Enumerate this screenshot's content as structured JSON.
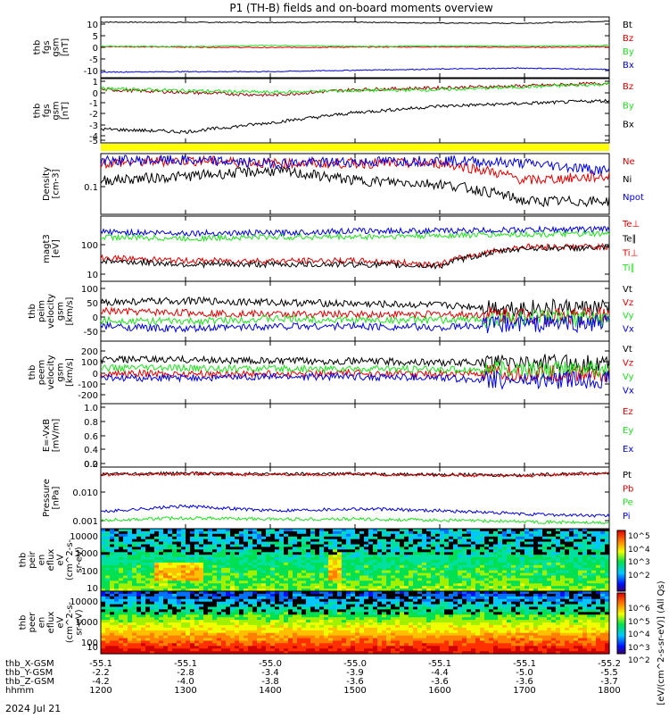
{
  "title": "P1 (TH-B) fields and on-board moments overview",
  "date_label": "2024 Jul 21",
  "colors": {
    "black": "#000000",
    "red": "#e00000",
    "green": "#20e020",
    "blue": "#0000e0",
    "yellow": "#ffff00"
  },
  "panels": [
    {
      "id": "fgs",
      "ylabel": [
        "thb",
        "fgs",
        "gsm",
        "[nT]"
      ],
      "ticks": [
        "10",
        "5",
        "0",
        "-5",
        "-10"
      ],
      "legend": [
        {
          "text": "Bt",
          "color": "black"
        },
        {
          "text": "Bz",
          "color": "red"
        },
        {
          "text": "By",
          "color": "green"
        },
        {
          "text": "Bx",
          "color": "blue"
        }
      ]
    },
    {
      "id": "fgs_zoom",
      "ylabel": [
        "thb",
        "fgs",
        "gsm",
        "[nT]"
      ],
      "ticks": [
        "1",
        "0",
        "-1",
        "-2",
        "-3",
        "-4",
        "-5"
      ],
      "legend": [
        {
          "text": "Bz",
          "color": "red"
        },
        {
          "text": "By",
          "color": "green"
        },
        {
          "text": "Bx",
          "color": "black"
        }
      ]
    },
    {
      "id": "density",
      "ylabel": [
        "Density",
        "[cm-3]"
      ],
      "ticks": [
        "0.1"
      ],
      "legend": [
        {
          "text": "Ne",
          "color": "red"
        },
        {
          "text": "Ni",
          "color": "black"
        },
        {
          "text": "Npot",
          "color": "blue"
        }
      ]
    },
    {
      "id": "temp",
      "ylabel": [
        "magt3",
        "[eV]"
      ],
      "ticks": [
        "100",
        "10"
      ],
      "legend": [
        {
          "text": "Te⊥",
          "color": "red"
        },
        {
          "text": "Te∥",
          "color": "black"
        },
        {
          "text": "Ti⊥",
          "color": "red"
        },
        {
          "text": "Ti∥",
          "color": "green"
        }
      ]
    },
    {
      "id": "peim",
      "ylabel": [
        "thb",
        "peim",
        "velocity",
        "gsm",
        "[km/s]"
      ],
      "ticks": [
        "100",
        "50",
        "0",
        "-50"
      ],
      "legend": [
        {
          "text": "Vt",
          "color": "black"
        },
        {
          "text": "Vz",
          "color": "red"
        },
        {
          "text": "Vy",
          "color": "green"
        },
        {
          "text": "Vx",
          "color": "blue"
        }
      ]
    },
    {
      "id": "peem",
      "ylabel": [
        "thb",
        "peem",
        "velocity",
        "gsm",
        "[km/s]"
      ],
      "ticks": [
        "200",
        "100",
        "0",
        "-100",
        "-200"
      ],
      "legend": [
        {
          "text": "Vt",
          "color": "black"
        },
        {
          "text": "Vz",
          "color": "red"
        },
        {
          "text": "Vy",
          "color": "green"
        },
        {
          "text": "Vx",
          "color": "blue"
        }
      ]
    },
    {
      "id": "efield",
      "ylabel": [
        "E=-VxB",
        "[mV/m]"
      ],
      "ticks": [
        "1.0",
        "0.8",
        "0.6",
        "0.4",
        "0.2",
        "0.0"
      ],
      "legend": [
        {
          "text": "Ez",
          "color": "red"
        },
        {
          "text": "Ey",
          "color": "green"
        },
        {
          "text": "Ex",
          "color": "blue"
        }
      ]
    },
    {
      "id": "pressure",
      "ylabel": [
        "Pressure",
        "[nPa]"
      ],
      "ticks": [
        "0.010",
        "0.001"
      ],
      "legend": [
        {
          "text": "Pt",
          "color": "black"
        },
        {
          "text": "Pb",
          "color": "red"
        },
        {
          "text": "Pe",
          "color": "green"
        },
        {
          "text": "Pi",
          "color": "blue"
        }
      ]
    },
    {
      "id": "peir",
      "ylabel": [
        "thb",
        "peir",
        "en",
        "eflux",
        "eV",
        "(cm^2-s-",
        "sr-eV)"
      ],
      "ticks": [
        "10000",
        "1000",
        "100",
        "10"
      ],
      "legend": []
    },
    {
      "id": "peer",
      "ylabel": [
        "thb",
        "peer",
        "en",
        "eflux",
        "eV",
        "(cm^2-s-",
        "sr-eV)"
      ],
      "ticks": [
        "10000",
        "1000",
        "100",
        "10"
      ],
      "legend": []
    }
  ],
  "colorbar": {
    "ticks": [
      "10^5",
      "10^4",
      "10^3",
      "10^2",
      "10^6",
      "10^5",
      "10^4",
      "10^3",
      "10^2"
    ],
    "title": "[eV/(cm^2-s-sr-eV)] (All Qs)"
  },
  "bottom_axis": {
    "row_labels": [
      "thb_X-GSM",
      "thb_Y-GSM",
      "thb_Z-GSM",
      "hhmm"
    ],
    "rows": [
      [
        "-55.1",
        "-55.1",
        "-55.0",
        "-55.0",
        "-55.1",
        "-55.1",
        "-55.2"
      ],
      [
        "-2.2",
        "-2.8",
        "-3.4",
        "-3.9",
        "-4.4",
        "-5.0",
        "-5.5"
      ],
      [
        "-4.2",
        "-4.0",
        "-3.8",
        "-3.6",
        "-3.6",
        "-3.6",
        "-3.7"
      ],
      [
        "1200",
        "1300",
        "1400",
        "1500",
        "1600",
        "1700",
        "1800"
      ]
    ]
  },
  "chart_data": {
    "type": "line",
    "title": "P1 (TH-B) fields and on-board moments overview",
    "x": [
      "1200",
      "1300",
      "1400",
      "1500",
      "1600",
      "1700",
      "1800"
    ],
    "xlabel": "hhmm",
    "panels": [
      {
        "id": "fgs",
        "ylim": [
          -13,
          13
        ],
        "series": [
          {
            "name": "Bt",
            "values": [
              10.8,
              10.7,
              10.7,
              10.8,
              10.4,
              10.3,
              11.2
            ]
          },
          {
            "name": "Bz",
            "values": [
              0.3,
              0.1,
              -0.1,
              0.1,
              0.2,
              0.0,
              0.2
            ]
          },
          {
            "name": "By",
            "values": [
              0.5,
              0.3,
              0.8,
              0.4,
              0.6,
              0.5,
              0.8
            ]
          },
          {
            "name": "Bx",
            "values": [
              -10.6,
              -10.4,
              -10.4,
              -9.8,
              -9.3,
              -8.9,
              -9.5
            ]
          }
        ]
      },
      {
        "id": "fgs_zoom",
        "ylim": [
          -5.5,
          1.5
        ],
        "series": [
          {
            "name": "Bz",
            "values": [
              0.3,
              0.0,
              -0.3,
              0.3,
              0.5,
              0.7,
              1.0
            ]
          },
          {
            "name": "By",
            "values": [
              0.4,
              0.2,
              0.0,
              0.2,
              0.3,
              0.6,
              0.9
            ]
          },
          {
            "name": "Bx",
            "values": [
              -4.0,
              -4.3,
              -3.3,
              -2.2,
              -1.5,
              -1.2,
              -0.9
            ]
          }
        ]
      },
      {
        "id": "density",
        "ylim": [
          0.02,
          0.5
        ],
        "log": true,
        "series": [
          {
            "name": "Ne",
            "values": [
              0.3,
              0.35,
              0.3,
              0.3,
              0.3,
              0.12,
              0.15
            ]
          },
          {
            "name": "Ni",
            "values": [
              0.12,
              0.15,
              0.2,
              0.12,
              0.1,
              0.04,
              0.04
            ]
          },
          {
            "name": "Npot",
            "values": [
              0.35,
              0.35,
              0.3,
              0.32,
              0.35,
              0.3,
              0.2
            ]
          }
        ]
      },
      {
        "id": "temp",
        "ylim": [
          7,
          400
        ],
        "log": true,
        "series": [
          {
            "name": "Te⊥",
            "values": [
              30,
              25,
              25,
              25,
              20,
              60,
              60
            ]
          },
          {
            "name": "Te∥",
            "values": [
              25,
              20,
              20,
              20,
              18,
              55,
              55
            ]
          },
          {
            "name": "Ti⊥",
            "values": [
              150,
              140,
              140,
              160,
              160,
              170,
              180
            ]
          },
          {
            "name": "Ti∥",
            "values": [
              110,
              100,
              110,
              110,
              120,
              130,
              130
            ]
          }
        ]
      },
      {
        "id": "peim",
        "ylim": [
          -80,
          120
        ],
        "series": [
          {
            "name": "Vt",
            "values": [
              50,
              55,
              50,
              45,
              40,
              30,
              30
            ]
          },
          {
            "name": "Vz",
            "values": [
              20,
              15,
              10,
              10,
              10,
              5,
              5
            ]
          },
          {
            "name": "Vy",
            "values": [
              -10,
              -15,
              -5,
              -10,
              -10,
              -5,
              -5
            ]
          },
          {
            "name": "Vx",
            "values": [
              -30,
              -40,
              -30,
              -30,
              -35,
              -20,
              -20
            ]
          }
        ]
      },
      {
        "id": "peem",
        "ylim": [
          -220,
          220
        ],
        "series": [
          {
            "name": "Vt",
            "values": [
              90,
              90,
              80,
              80,
              70,
              70,
              60
            ]
          },
          {
            "name": "Vz",
            "values": [
              -10,
              -10,
              -10,
              -5,
              -10,
              -10,
              -10
            ]
          },
          {
            "name": "Vy",
            "values": [
              30,
              30,
              25,
              25,
              20,
              20,
              20
            ]
          },
          {
            "name": "Vx",
            "values": [
              -40,
              -40,
              -30,
              -30,
              -40,
              -60,
              -50
            ]
          }
        ]
      },
      {
        "id": "efield",
        "ylim": [
          0,
          1
        ],
        "series": []
      },
      {
        "id": "pressure",
        "ylim": [
          0.0006,
          0.05
        ],
        "log": true,
        "series": [
          {
            "name": "Pt",
            "values": [
              0.03,
              0.032,
              0.03,
              0.031,
              0.029,
              0.028,
              0.033
            ]
          },
          {
            "name": "Pb",
            "values": [
              0.029,
              0.031,
              0.029,
              0.03,
              0.028,
              0.027,
              0.032
            ]
          },
          {
            "name": "Pe",
            "values": [
              0.0011,
              0.0013,
              0.0012,
              0.0012,
              0.0011,
              0.001,
              0.0009
            ]
          },
          {
            "name": "Pi",
            "values": [
              0.002,
              0.003,
              0.0022,
              0.0025,
              0.0022,
              0.0017,
              0.0015
            ]
          }
        ]
      }
    ]
  }
}
